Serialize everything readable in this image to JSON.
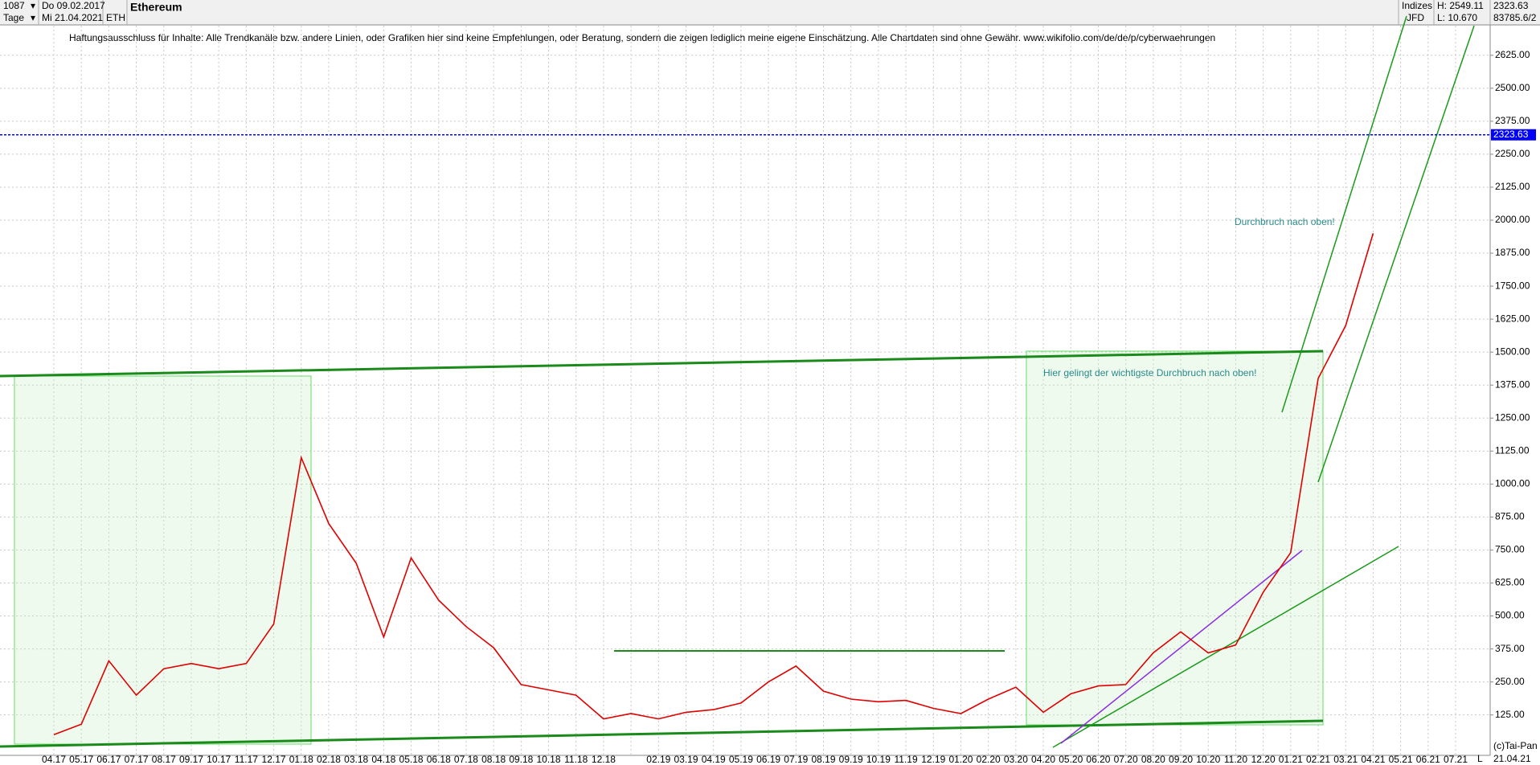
{
  "header": {
    "bars": "1087",
    "interval": "Tage",
    "from": "Do 09.02.2017",
    "to": "Mi 21.04.2021",
    "symbol": "ETH",
    "group": "Indizes",
    "exchange": "JFD",
    "high": "H: 2549.11",
    "low": "L: 10.670",
    "volume": "83785.6/2"
  },
  "footer": {
    "copyright": "(c)Tai-Pan",
    "date": "21.04.21",
    "scale": "L"
  },
  "chart_data": {
    "type": "line",
    "title": "Ethereum",
    "subtitle": "Haftungsausschluss für Inhalte: Alle Trendkanäle bzw. andere Linien, oder Grafiken hier sind keine Empfehlungen, oder Beratung, sondern die zeigen lediglich meine eigene Einschätzung. Alle Chartdaten sind ohne Gewähr.  www.wikifolio.com/de/de/p/cyberwaehrungen",
    "annotations": [
      "Durchbruch nach oben!",
      "Hier gelingt der wichtigste Durchbruch nach oben!"
    ],
    "categories": [
      "04.17",
      "05.17",
      "06.17",
      "07.17",
      "08.17",
      "09.17",
      "10.17",
      "11.17",
      "12.17",
      "01.18",
      "02.18",
      "03.18",
      "04.18",
      "05.18",
      "06.18",
      "07.18",
      "08.18",
      "09.18",
      "10.18",
      "11.18",
      "12.18",
      null,
      "02.19",
      "03.19",
      "04.19",
      "05.19",
      "06.19",
      "07.19",
      "08.19",
      "09.19",
      "10.19",
      "11.19",
      "12.19",
      "01.20",
      "02.20",
      "03.20",
      "04.20",
      "05.20",
      "06.20",
      "07.20",
      "08.20",
      "09.20",
      "10.20",
      "11.20",
      "12.20",
      "01.21",
      "02.21",
      "03.21",
      "04.21",
      "05.21",
      "06.21",
      "07.21"
    ],
    "series": [
      {
        "name": "ETH",
        "color": "#e00000",
        "values": [
          50,
          90,
          330,
          200,
          300,
          320,
          300,
          320,
          470,
          1100,
          850,
          700,
          420,
          720,
          560,
          460,
          380,
          240,
          220,
          200,
          110,
          130,
          110,
          135,
          145,
          170,
          250,
          310,
          215,
          185,
          175,
          180,
          150,
          130,
          185,
          230,
          135,
          205,
          235,
          240,
          360,
          440,
          360,
          390,
          590,
          740,
          1400,
          1600,
          1950,
          null,
          null,
          null
        ]
      }
    ],
    "current": 2323.63,
    "current_color": "#0000ff",
    "ylim": [
      -13,
      2737
    ],
    "yticks": [
      {
        "value": 125,
        "label": "125.00"
      },
      {
        "value": 250,
        "label": "250.00"
      },
      {
        "value": 375,
        "label": "375.00"
      },
      {
        "value": 500,
        "label": "500.00"
      },
      {
        "value": 625,
        "label": "625.00"
      },
      {
        "value": 750,
        "label": "750.00"
      },
      {
        "value": 875,
        "label": "875.00"
      },
      {
        "value": 1000,
        "label": "1000.00"
      },
      {
        "value": 1125,
        "label": "1125.00"
      },
      {
        "value": 1250,
        "label": "1250.00"
      },
      {
        "value": 1375,
        "label": "1375.00"
      },
      {
        "value": 1500,
        "label": "1500.00"
      },
      {
        "value": 1625,
        "label": "1625.00"
      },
      {
        "value": 1750,
        "label": "1750.00"
      },
      {
        "value": 1875,
        "label": "1875.00"
      },
      {
        "value": 2000,
        "label": "2000.00"
      },
      {
        "value": 2125,
        "label": "2125.00"
      },
      {
        "value": 2250,
        "label": "2250.00"
      },
      {
        "value": 2375,
        "label": "2375.00"
      },
      {
        "value": 2500,
        "label": "2500.00"
      },
      {
        "value": 2625,
        "label": "2625.00"
      }
    ],
    "grid": true
  }
}
